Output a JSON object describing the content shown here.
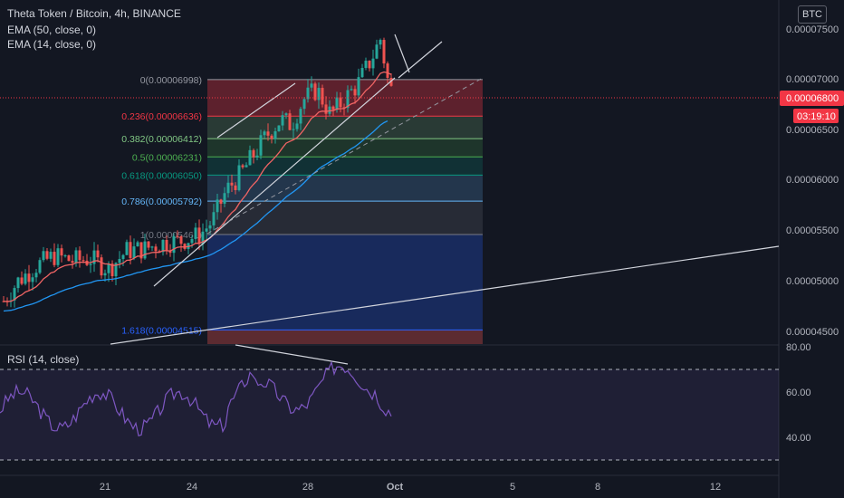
{
  "header": {
    "symbol_line": "Theta Token / Bitcoin, 4h, BINANCE",
    "ema50_label": "EMA (50, close, 0)",
    "ema14_label": "EMA (14, close, 0)",
    "currency_badge": "BTC"
  },
  "price_badge": {
    "value": "0.00006800",
    "countdown": "03:19:10",
    "color": "#f23645"
  },
  "rsi_panel": {
    "label": "RSI (14, close)",
    "color": "#7e57c2"
  },
  "colors": {
    "ema50": "#2196f3",
    "ema14": "#f06464",
    "up": "#26a69a",
    "down": "#ef5350",
    "background": "#131722"
  },
  "chart_data": {
    "type": "candlestick",
    "price_axis": {
      "ticks": [
        "0.00007500",
        "0.00007000",
        "0.00006500",
        "0.00006000",
        "0.00005500",
        "0.00005000",
        "0.00004500"
      ]
    },
    "time_axis": {
      "ticks": [
        "21",
        "24",
        "28",
        "Oct",
        "5",
        "8",
        "12"
      ]
    },
    "rsi_axis": {
      "ticks": [
        "80.00",
        "60.00",
        "40.00"
      ]
    },
    "fib_levels": [
      {
        "label": "0(0.00006998)",
        "value": 6.998e-05,
        "color": "#9598a1"
      },
      {
        "label": "0.236(0.00006636)",
        "value": 6.636e-05,
        "color": "#f23645"
      },
      {
        "label": "0.382(0.00006412)",
        "value": 6.412e-05,
        "color": "#81c784"
      },
      {
        "label": "0.5(0.00006231)",
        "value": 6.231e-05,
        "color": "#4caf50"
      },
      {
        "label": "0.618(0.00006050)",
        "value": 6.05e-05,
        "color": "#089981"
      },
      {
        "label": "0.786(0.00005792)",
        "value": 5.792e-05,
        "color": "#64b5f6"
      },
      {
        "label": "1(0.00005461)",
        "value": 5.461e-05,
        "color": "#787b86"
      },
      {
        "label": "1.618(0.00004515)",
        "value": 4.515e-05,
        "color": "#2962ff"
      }
    ]
  }
}
